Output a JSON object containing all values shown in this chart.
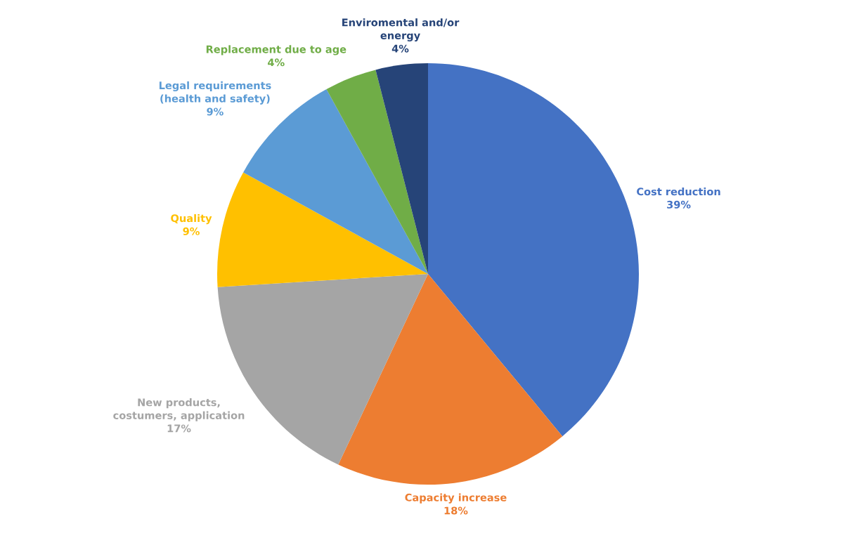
{
  "chart_data": {
    "type": "pie",
    "categories": [
      "Cost reduction",
      "Capacity increase",
      "New products,\ncostumers, application",
      "Quality",
      "Legal requirements\n(health and safety)",
      "Replacement due to age",
      "Enviromental and/or\nenergy"
    ],
    "values": [
      39,
      18,
      17,
      9,
      9,
      4,
      4
    ],
    "value_labels": [
      "39%",
      "18%",
      "17%",
      "9%",
      "9%",
      "4%",
      "4%"
    ],
    "colors": [
      "#4472c4",
      "#ed7d31",
      "#a5a5a5",
      "#ffc000",
      "#5b9bd5",
      "#70ad47",
      "#264478"
    ],
    "legend": false
  }
}
